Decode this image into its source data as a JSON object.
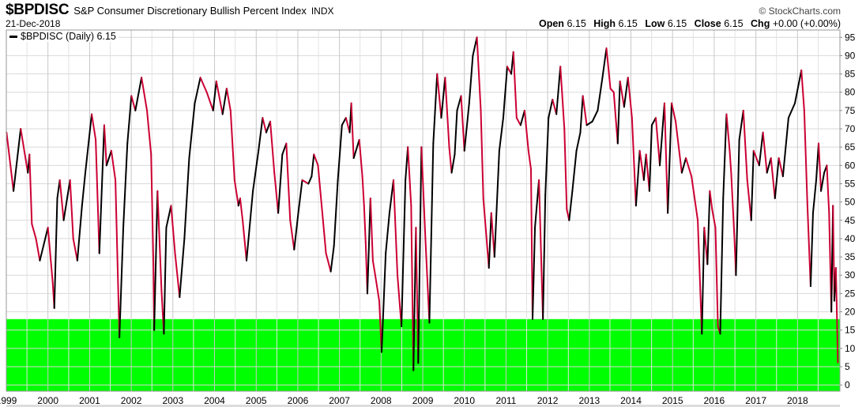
{
  "header": {
    "symbol": "$BPDISC",
    "name": "S&P Consumer Discretionary Bullish Percent Index",
    "exchange": "INDX",
    "date": "21-Dec-2018",
    "brand": "© StockCharts.com",
    "open_label": "Open",
    "open": "6.15",
    "high_label": "High",
    "high": "6.15",
    "low_label": "Low",
    "low": "6.15",
    "close_label": "Close",
    "close": "6.15",
    "chg_label": "Chg",
    "chg": "+0.00 (+0.00%)"
  },
  "legend": {
    "label": "$BPDISC (Daily) 6.15"
  },
  "colors": {
    "up": "#000000",
    "down": "#cc0033",
    "zone": "#00ff00",
    "grid": "#d9d9d9"
  },
  "chart_data": {
    "type": "line",
    "series_name": "$BPDISC (Daily)",
    "x_ticks": [
      "1999",
      "2000",
      "2001",
      "2002",
      "2003",
      "2004",
      "2005",
      "2006",
      "2007",
      "2008",
      "2009",
      "2010",
      "2011",
      "2012",
      "2013",
      "2014",
      "2015",
      "2016",
      "2017",
      "2018"
    ],
    "y_ticks": [
      0,
      5,
      10,
      15,
      20,
      25,
      30,
      35,
      40,
      45,
      50,
      55,
      60,
      65,
      70,
      75,
      80,
      85,
      90,
      95
    ],
    "xlim": [
      "1999-01-01",
      "2019-01-08"
    ],
    "ylim": [
      -1.7,
      97
    ],
    "y_axis_side": "right",
    "grid": true,
    "highlight_zone": {
      "from": -1.7,
      "to": 18
    },
    "points": [
      [
        "1999-01-03",
        69
      ],
      [
        "1999-03-05",
        53
      ],
      [
        "1999-05-07",
        70
      ],
      [
        "1999-07-09",
        58
      ],
      [
        "1999-07-23",
        63
      ],
      [
        "1999-08-13",
        44
      ],
      [
        "1999-09-18",
        40
      ],
      [
        "1999-10-22",
        34
      ],
      [
        "2000-01-01",
        43
      ],
      [
        "2000-02-12",
        28
      ],
      [
        "2000-02-26",
        21
      ],
      [
        "2000-03-23",
        51
      ],
      [
        "2000-04-14",
        56
      ],
      [
        "2000-05-18",
        45
      ],
      [
        "2000-07-13",
        56
      ],
      [
        "2000-08-10",
        40
      ],
      [
        "2000-09-15",
        34
      ],
      [
        "2000-10-26",
        49
      ],
      [
        "2000-11-24",
        58
      ],
      [
        "2001-01-19",
        74
      ],
      [
        "2001-02-23",
        67
      ],
      [
        "2001-03-27",
        36
      ],
      [
        "2001-05-09",
        71
      ],
      [
        "2001-05-29",
        60
      ],
      [
        "2001-07-10",
        64
      ],
      [
        "2001-08-15",
        56
      ],
      [
        "2001-09-19",
        13
      ],
      [
        "2001-10-23",
        43
      ],
      [
        "2001-11-28",
        66
      ],
      [
        "2002-01-02",
        79
      ],
      [
        "2002-02-06",
        75
      ],
      [
        "2002-04-01",
        84
      ],
      [
        "2002-05-19",
        75
      ],
      [
        "2002-06-24",
        63
      ],
      [
        "2002-07-14",
        33
      ],
      [
        "2002-07-21",
        15
      ],
      [
        "2002-08-19",
        53
      ],
      [
        "2002-09-23",
        26
      ],
      [
        "2002-10-14",
        14
      ],
      [
        "2002-11-04",
        43
      ],
      [
        "2002-12-16",
        49
      ],
      [
        "2003-01-20",
        36
      ],
      [
        "2003-03-01",
        24
      ],
      [
        "2003-04-12",
        40
      ],
      [
        "2003-05-24",
        62
      ],
      [
        "2003-07-12",
        77
      ],
      [
        "2003-08-30",
        84
      ],
      [
        "2003-10-25",
        80
      ],
      [
        "2003-12-20",
        75
      ],
      [
        "2004-01-17",
        83
      ],
      [
        "2004-03-12",
        74
      ],
      [
        "2004-04-17",
        81
      ],
      [
        "2004-05-21",
        75
      ],
      [
        "2004-06-25",
        56
      ],
      [
        "2004-07-29",
        49
      ],
      [
        "2004-08-13",
        51
      ],
      [
        "2004-09-04",
        45
      ],
      [
        "2004-10-08",
        34
      ],
      [
        "2004-12-03",
        53
      ],
      [
        "2005-01-21",
        64
      ],
      [
        "2005-02-26",
        73
      ],
      [
        "2005-03-30",
        69
      ],
      [
        "2005-05-04",
        72
      ],
      [
        "2005-06-09",
        58
      ],
      [
        "2005-07-13",
        47
      ],
      [
        "2005-08-18",
        63
      ],
      [
        "2005-09-22",
        66
      ],
      [
        "2005-10-13",
        53
      ],
      [
        "2005-10-26",
        45
      ],
      [
        "2005-11-30",
        37
      ],
      [
        "2006-01-05",
        47
      ],
      [
        "2006-02-09",
        56
      ],
      [
        "2006-04-04",
        55
      ],
      [
        "2006-05-02",
        57
      ],
      [
        "2006-05-22",
        63
      ],
      [
        "2006-06-27",
        60
      ],
      [
        "2006-08-01",
        48
      ],
      [
        "2006-09-05",
        36
      ],
      [
        "2006-10-17",
        31
      ],
      [
        "2006-11-14",
        38
      ],
      [
        "2006-12-18",
        56
      ],
      [
        "2007-01-23",
        71
      ],
      [
        "2007-02-27",
        73
      ],
      [
        "2007-04-01",
        69
      ],
      [
        "2007-04-15",
        77
      ],
      [
        "2007-05-06",
        62
      ],
      [
        "2007-06-24",
        67
      ],
      [
        "2007-07-21",
        57
      ],
      [
        "2007-08-05",
        49
      ],
      [
        "2007-08-19",
        39
      ],
      [
        "2007-09-03",
        25
      ],
      [
        "2007-09-30",
        51
      ],
      [
        "2007-10-21",
        34
      ],
      [
        "2007-11-11",
        30
      ],
      [
        "2007-12-16",
        23
      ],
      [
        "2008-01-06",
        9
      ],
      [
        "2008-02-11",
        36
      ],
      [
        "2008-03-15",
        47
      ],
      [
        "2008-04-19",
        56
      ],
      [
        "2008-05-24",
        30
      ],
      [
        "2008-06-28",
        16
      ],
      [
        "2008-08-02",
        56
      ],
      [
        "2008-08-23",
        65
      ],
      [
        "2008-09-21",
        49
      ],
      [
        "2008-10-11",
        4
      ],
      [
        "2008-11-02",
        43
      ],
      [
        "2008-11-22",
        6
      ],
      [
        "2008-12-20",
        65
      ],
      [
        "2009-01-24",
        40
      ],
      [
        "2009-02-28",
        17
      ],
      [
        "2009-04-03",
        66
      ],
      [
        "2009-05-07",
        85
      ],
      [
        "2009-06-12",
        73
      ],
      [
        "2009-07-16",
        84
      ],
      [
        "2009-08-21",
        65
      ],
      [
        "2009-09-11",
        58
      ],
      [
        "2009-10-08",
        63
      ],
      [
        "2009-10-29",
        75
      ],
      [
        "2009-12-03",
        79
      ],
      [
        "2010-01-01",
        64
      ],
      [
        "2010-02-12",
        77
      ],
      [
        "2010-03-16",
        90
      ],
      [
        "2010-04-21",
        95
      ],
      [
        "2010-05-25",
        75
      ],
      [
        "2010-06-16",
        51
      ],
      [
        "2010-06-29",
        46
      ],
      [
        "2010-08-04",
        32
      ],
      [
        "2010-08-25",
        47
      ],
      [
        "2010-09-22",
        35
      ],
      [
        "2010-11-03",
        64
      ],
      [
        "2010-12-08",
        73
      ],
      [
        "2011-01-12",
        87
      ],
      [
        "2011-02-16",
        85
      ],
      [
        "2011-03-07",
        91
      ],
      [
        "2011-04-04",
        73
      ],
      [
        "2011-05-09",
        71
      ],
      [
        "2011-06-13",
        75
      ],
      [
        "2011-07-17",
        64
      ],
      [
        "2011-08-08",
        59
      ],
      [
        "2011-08-22",
        18
      ],
      [
        "2011-09-12",
        43
      ],
      [
        "2011-10-17",
        56
      ],
      [
        "2011-11-21",
        18
      ],
      [
        "2011-12-12",
        52
      ],
      [
        "2012-01-09",
        73
      ],
      [
        "2012-02-13",
        78
      ],
      [
        "2012-03-18",
        74
      ],
      [
        "2012-04-22",
        87
      ],
      [
        "2012-05-27",
        70
      ],
      [
        "2012-06-17",
        48
      ],
      [
        "2012-07-08",
        45
      ],
      [
        "2012-08-05",
        53
      ],
      [
        "2012-09-10",
        64
      ],
      [
        "2012-10-14",
        69
      ],
      [
        "2012-11-05",
        79
      ],
      [
        "2012-12-09",
        71
      ],
      [
        "2013-01-27",
        72
      ],
      [
        "2013-03-15",
        75
      ],
      [
        "2013-04-26",
        84
      ],
      [
        "2013-05-31",
        92
      ],
      [
        "2013-07-05",
        81
      ],
      [
        "2013-08-03",
        80
      ],
      [
        "2013-09-07",
        66
      ],
      [
        "2013-09-27",
        83
      ],
      [
        "2013-11-02",
        76
      ],
      [
        "2013-12-06",
        84
      ],
      [
        "2014-01-10",
        73
      ],
      [
        "2014-02-14",
        49
      ],
      [
        "2014-03-19",
        64
      ],
      [
        "2014-04-24",
        56
      ],
      [
        "2014-05-14",
        63
      ],
      [
        "2014-06-12",
        53
      ],
      [
        "2014-07-03",
        71
      ],
      [
        "2014-08-07",
        73
      ],
      [
        "2014-09-11",
        60
      ],
      [
        "2014-10-22",
        77
      ],
      [
        "2014-11-20",
        47
      ],
      [
        "2014-12-24",
        77
      ],
      [
        "2015-01-28",
        72
      ],
      [
        "2015-03-23",
        58
      ],
      [
        "2015-04-28",
        62
      ],
      [
        "2015-06-16",
        57
      ],
      [
        "2015-08-10",
        45
      ],
      [
        "2015-09-15",
        14
      ],
      [
        "2015-10-06",
        43
      ],
      [
        "2015-11-03",
        33
      ],
      [
        "2015-11-24",
        53
      ],
      [
        "2015-12-14",
        48
      ],
      [
        "2016-01-12",
        43
      ],
      [
        "2016-02-03",
        16
      ],
      [
        "2016-02-23",
        14
      ],
      [
        "2016-03-20",
        51
      ],
      [
        "2016-04-18",
        74
      ],
      [
        "2016-05-16",
        64
      ],
      [
        "2016-05-29",
        58
      ],
      [
        "2016-06-27",
        40
      ],
      [
        "2016-07-10",
        30
      ],
      [
        "2016-08-08",
        67
      ],
      [
        "2016-09-13",
        75
      ],
      [
        "2016-10-17",
        56
      ],
      [
        "2016-11-21",
        45
      ],
      [
        "2016-12-12",
        64
      ],
      [
        "2017-01-30",
        60
      ],
      [
        "2017-03-04",
        69
      ],
      [
        "2017-04-08",
        58
      ],
      [
        "2017-05-13",
        62
      ],
      [
        "2017-06-17",
        51
      ],
      [
        "2017-07-21",
        62
      ],
      [
        "2017-08-26",
        57
      ],
      [
        "2017-10-14",
        73
      ],
      [
        "2017-12-09",
        77
      ],
      [
        "2018-02-04",
        86
      ],
      [
        "2018-03-01",
        75
      ],
      [
        "2018-03-29",
        49
      ],
      [
        "2018-04-26",
        27
      ],
      [
        "2018-05-17",
        47
      ],
      [
        "2018-06-14",
        56
      ],
      [
        "2018-07-05",
        66
      ],
      [
        "2018-07-26",
        53
      ],
      [
        "2018-08-23",
        58
      ],
      [
        "2018-09-15",
        60
      ],
      [
        "2018-10-05",
        47
      ],
      [
        "2018-10-25",
        20
      ],
      [
        "2018-11-08",
        49
      ],
      [
        "2018-11-20",
        23
      ],
      [
        "2018-12-03",
        32
      ],
      [
        "2018-12-10",
        23
      ],
      [
        "2018-12-21",
        6.15
      ]
    ]
  }
}
